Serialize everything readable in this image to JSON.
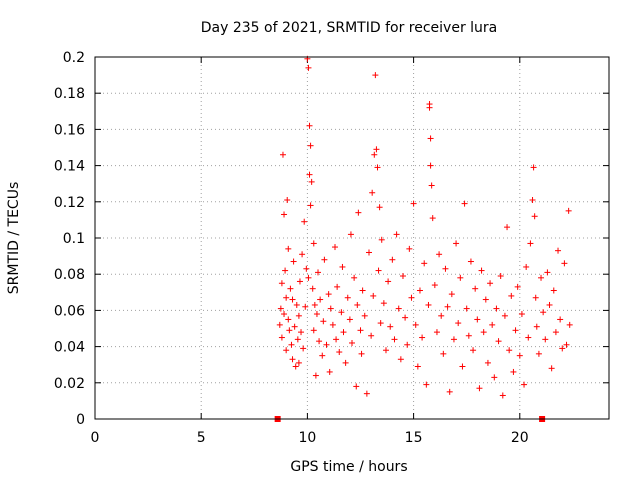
{
  "chart_data": {
    "type": "scatter",
    "title": "Day 235 of 2021, SRMTID for receiver lura",
    "xlabel": "GPS time / hours",
    "ylabel": "SRMTID / TECUs",
    "xlim": [
      0,
      24.2
    ],
    "ylim": [
      0,
      0.2
    ],
    "xticks": [
      0,
      5,
      10,
      15,
      20
    ],
    "xtick_labels": [
      "0",
      "5",
      "10",
      "15",
      "20"
    ],
    "yticks": [
      0,
      0.02,
      0.04,
      0.06,
      0.08,
      0.1,
      0.12,
      0.14,
      0.16,
      0.18,
      0.2
    ],
    "ytick_labels": [
      "0",
      "0.02",
      "0.04",
      "0.06",
      "0.08",
      "0.1",
      "0.12",
      "0.14",
      "0.16",
      "0.18",
      "0.2"
    ],
    "grid": true,
    "marker": "plus",
    "color": "#ff0000",
    "series": [
      {
        "name": "SRMTID",
        "x": [
          8.7,
          8.75,
          8.8,
          8.8,
          8.85,
          8.9,
          8.9,
          8.95,
          9.0,
          9.0,
          9.05,
          9.1,
          9.1,
          9.15,
          9.2,
          9.25,
          9.3,
          9.3,
          9.35,
          9.4,
          9.45,
          9.5,
          9.55,
          9.6,
          9.6,
          9.65,
          9.7,
          9.75,
          9.8,
          9.85,
          9.9,
          9.95,
          10.0,
          10.05,
          10.05,
          10.1,
          10.1,
          10.15,
          10.15,
          10.2,
          10.25,
          10.3,
          10.3,
          10.35,
          10.4,
          10.45,
          10.5,
          10.55,
          10.6,
          10.7,
          10.75,
          10.8,
          10.9,
          11.0,
          11.05,
          11.1,
          11.2,
          11.3,
          11.35,
          11.4,
          11.5,
          11.6,
          11.65,
          11.7,
          11.8,
          11.9,
          12.0,
          12.05,
          12.1,
          12.2,
          12.3,
          12.35,
          12.4,
          12.5,
          12.55,
          12.6,
          12.7,
          12.8,
          12.9,
          13.0,
          13.05,
          13.1,
          13.15,
          13.2,
          13.25,
          13.3,
          13.35,
          13.4,
          13.45,
          13.5,
          13.6,
          13.7,
          13.8,
          13.9,
          14.0,
          14.1,
          14.2,
          14.3,
          14.4,
          14.5,
          14.6,
          14.7,
          14.8,
          14.9,
          15.0,
          15.1,
          15.2,
          15.3,
          15.4,
          15.5,
          15.6,
          15.7,
          15.75,
          15.75,
          15.8,
          15.8,
          15.85,
          15.9,
          16.0,
          16.1,
          16.2,
          16.3,
          16.4,
          16.5,
          16.6,
          16.7,
          16.8,
          16.9,
          17.0,
          17.1,
          17.2,
          17.3,
          17.4,
          17.5,
          17.6,
          17.7,
          17.8,
          17.9,
          18.0,
          18.1,
          18.2,
          18.3,
          18.4,
          18.5,
          18.6,
          18.7,
          18.8,
          18.9,
          19.0,
          19.1,
          19.2,
          19.3,
          19.4,
          19.5,
          19.6,
          19.7,
          19.8,
          19.9,
          20.0,
          20.1,
          20.2,
          20.3,
          20.4,
          20.5,
          20.6,
          20.65,
          20.7,
          20.75,
          20.8,
          20.9,
          21.0,
          21.1,
          21.2,
          21.3,
          21.4,
          21.5,
          21.6,
          21.7,
          21.8,
          21.9,
          22.0,
          22.1,
          22.2,
          22.3,
          22.35
        ],
        "y": [
          0.052,
          0.061,
          0.045,
          0.075,
          0.146,
          0.058,
          0.113,
          0.082,
          0.067,
          0.038,
          0.121,
          0.055,
          0.094,
          0.049,
          0.072,
          0.041,
          0.066,
          0.033,
          0.087,
          0.051,
          0.029,
          0.063,
          0.044,
          0.057,
          0.031,
          0.076,
          0.048,
          0.091,
          0.039,
          0.109,
          0.062,
          0.083,
          0.199,
          0.194,
          0.078,
          0.162,
          0.135,
          0.151,
          0.118,
          0.131,
          0.072,
          0.097,
          0.049,
          0.063,
          0.024,
          0.058,
          0.081,
          0.043,
          0.066,
          0.035,
          0.054,
          0.088,
          0.041,
          0.069,
          0.026,
          0.061,
          0.052,
          0.095,
          0.044,
          0.073,
          0.037,
          0.059,
          0.084,
          0.048,
          0.031,
          0.067,
          0.055,
          0.102,
          0.042,
          0.078,
          0.018,
          0.063,
          0.114,
          0.049,
          0.036,
          0.071,
          0.057,
          0.014,
          0.092,
          0.046,
          0.125,
          0.068,
          0.146,
          0.19,
          0.149,
          0.139,
          0.082,
          0.117,
          0.053,
          0.099,
          0.064,
          0.038,
          0.076,
          0.051,
          0.088,
          0.044,
          0.102,
          0.061,
          0.033,
          0.079,
          0.056,
          0.041,
          0.094,
          0.067,
          0.119,
          0.052,
          0.029,
          0.071,
          0.045,
          0.086,
          0.019,
          0.063,
          0.174,
          0.172,
          0.155,
          0.14,
          0.129,
          0.111,
          0.074,
          0.048,
          0.091,
          0.057,
          0.036,
          0.083,
          0.062,
          0.015,
          0.069,
          0.044,
          0.097,
          0.053,
          0.078,
          0.029,
          0.119,
          0.061,
          0.046,
          0.087,
          0.038,
          0.072,
          0.055,
          0.017,
          0.082,
          0.048,
          0.066,
          0.031,
          0.075,
          0.052,
          0.023,
          0.061,
          0.043,
          0.079,
          0.013,
          0.057,
          0.106,
          0.038,
          0.068,
          0.026,
          0.049,
          0.073,
          0.035,
          0.058,
          0.019,
          0.084,
          0.045,
          0.097,
          0.121,
          0.139,
          0.112,
          0.067,
          0.051,
          0.036,
          0.078,
          0.059,
          0.044,
          0.081,
          0.063,
          0.028,
          0.071,
          0.048,
          0.093,
          0.055,
          0.039,
          0.086,
          0.041,
          0.115,
          0.052
        ]
      }
    ],
    "annotations": [
      {
        "label": "data-gap-start-marker",
        "x": 8.6,
        "y": 0
      },
      {
        "label": "data-gap-end-marker",
        "x": 21.05,
        "y": 0
      }
    ]
  }
}
